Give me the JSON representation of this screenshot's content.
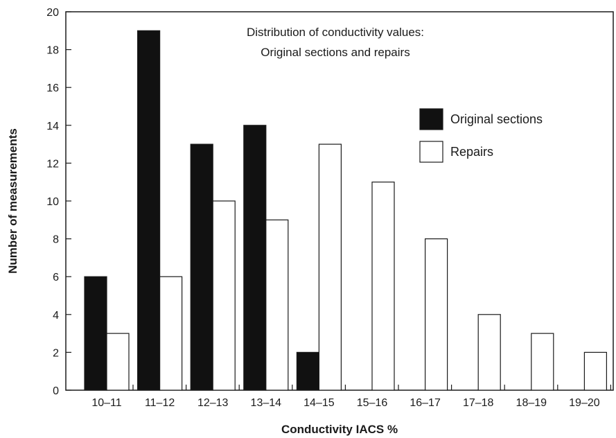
{
  "chart_data": {
    "type": "bar",
    "title": "Distribution of conductivity values:",
    "subtitle": "Original sections and repairs",
    "xlabel": "Conductivity IACS %",
    "ylabel": "Number of measurements",
    "categories": [
      "10–11",
      "11–12",
      "12–13",
      "13–14",
      "14–15",
      "15–16",
      "16–17",
      "17–18",
      "18–19",
      "19–20"
    ],
    "series": [
      {
        "name": "Original sections",
        "color": "#111111",
        "values": [
          6,
          19,
          13,
          14,
          2,
          0,
          0,
          0,
          0,
          0
        ]
      },
      {
        "name": "Repairs",
        "color": "#ffffff",
        "values": [
          3,
          6,
          10,
          9,
          13,
          11,
          8,
          4,
          3,
          2
        ]
      }
    ],
    "ylim": [
      0,
      20
    ],
    "yticks": [
      0,
      2,
      4,
      6,
      8,
      10,
      12,
      14,
      16,
      18,
      20
    ],
    "grid": false,
    "legend_position": "right"
  }
}
